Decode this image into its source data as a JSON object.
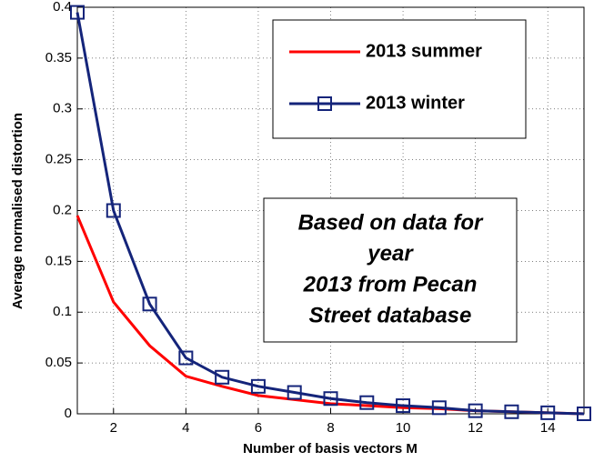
{
  "chart_data": {
    "type": "line",
    "xlabel": "Number of basis vectors M",
    "ylabel": "Average normalised distortion",
    "x": [
      1,
      2,
      3,
      4,
      5,
      6,
      7,
      8,
      9,
      10,
      11,
      12,
      13,
      14,
      15
    ],
    "series": [
      {
        "name": "2013 summer",
        "color": "#ff0000",
        "marker": "none",
        "values": [
          0.195,
          0.11,
          0.067,
          0.037,
          0.027,
          0.018,
          0.014,
          0.01,
          0.008,
          0.006,
          0.005,
          0.003,
          0.002,
          0.001,
          0.0
        ]
      },
      {
        "name": "2013 winter",
        "color": "#14247a",
        "marker": "square",
        "values": [
          0.395,
          0.2,
          0.108,
          0.055,
          0.036,
          0.027,
          0.021,
          0.015,
          0.011,
          0.008,
          0.006,
          0.003,
          0.002,
          0.001,
          0.0
        ]
      }
    ],
    "annotation": [
      "Based on data for",
      "year",
      "2013 from Pecan",
      "Street database"
    ],
    "xlim": [
      1,
      15
    ],
    "xticks": [
      2,
      4,
      6,
      8,
      10,
      12,
      14
    ],
    "ylim": [
      0,
      0.4
    ],
    "yticks": [
      0,
      0.05,
      0.1,
      0.15,
      0.2,
      0.25,
      0.3,
      0.35,
      0.4
    ],
    "grid": true,
    "legend": "upper right"
  }
}
